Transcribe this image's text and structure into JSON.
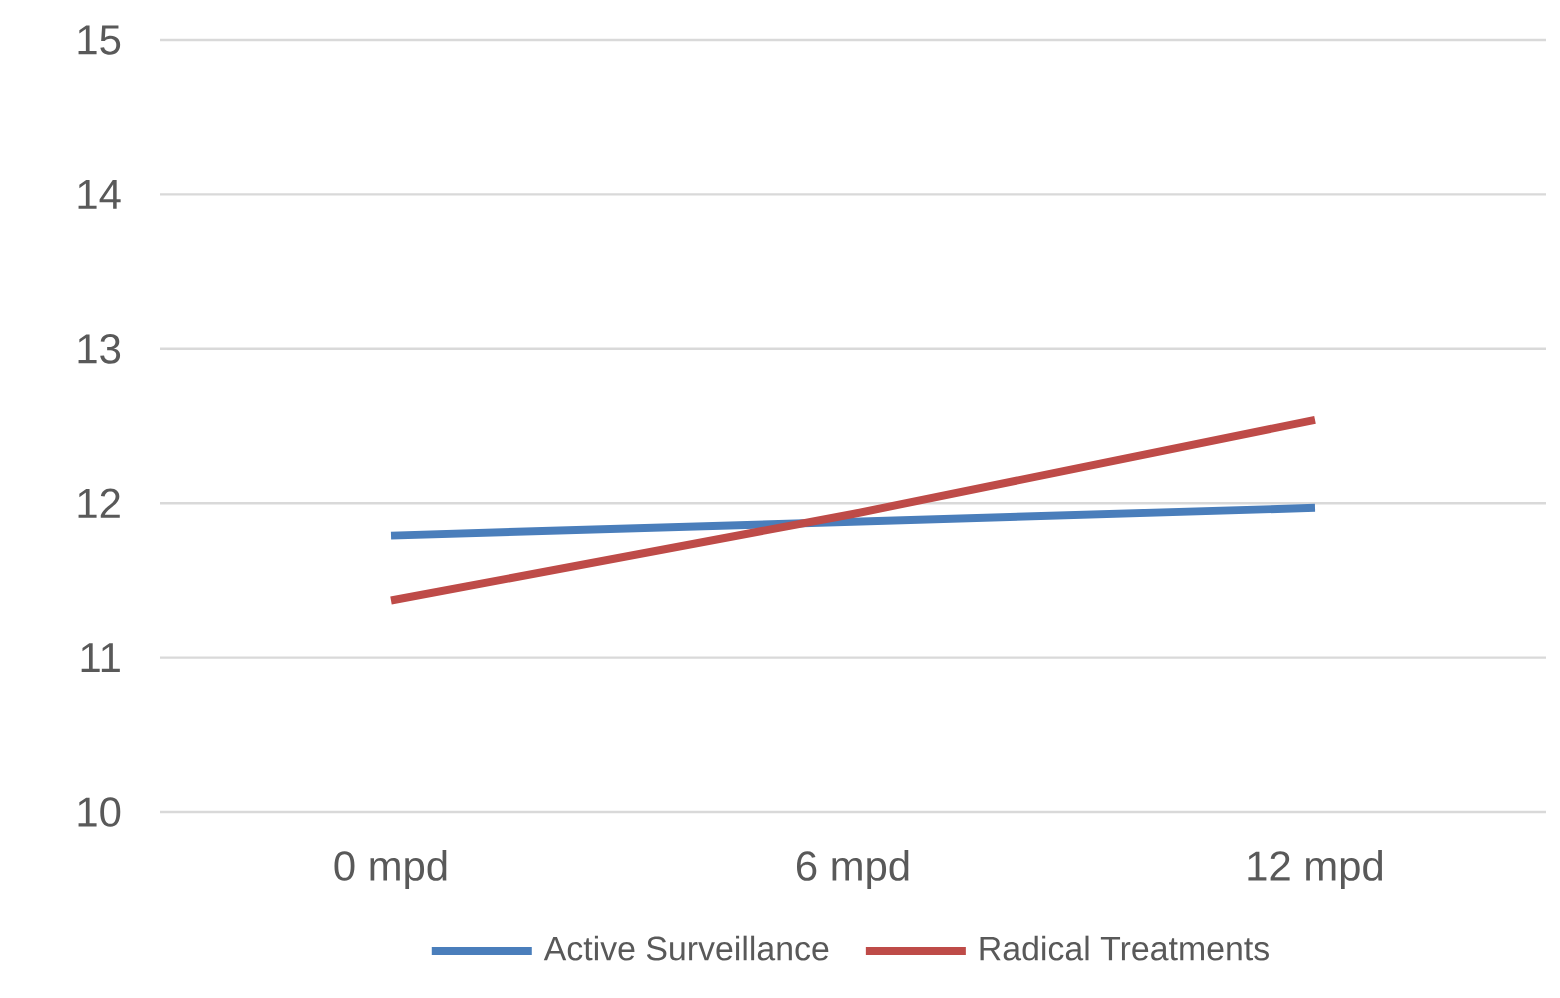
{
  "chart_data": {
    "type": "line",
    "categories": [
      "0 mpd",
      "6 mpd",
      "12 mpd"
    ],
    "series": [
      {
        "name": "Active Surveillance",
        "color": "#4a7ebb",
        "values": [
          11.79,
          11.88,
          11.97
        ]
      },
      {
        "name": "Radical Treatments",
        "color": "#be4b48",
        "values": [
          11.37,
          11.93,
          12.54
        ]
      }
    ],
    "ylim": [
      10,
      15
    ],
    "yticks": [
      10,
      11,
      12,
      13,
      14,
      15
    ],
    "grid": "y",
    "legend": "bottom",
    "marker": "none",
    "line_style": "solid"
  }
}
